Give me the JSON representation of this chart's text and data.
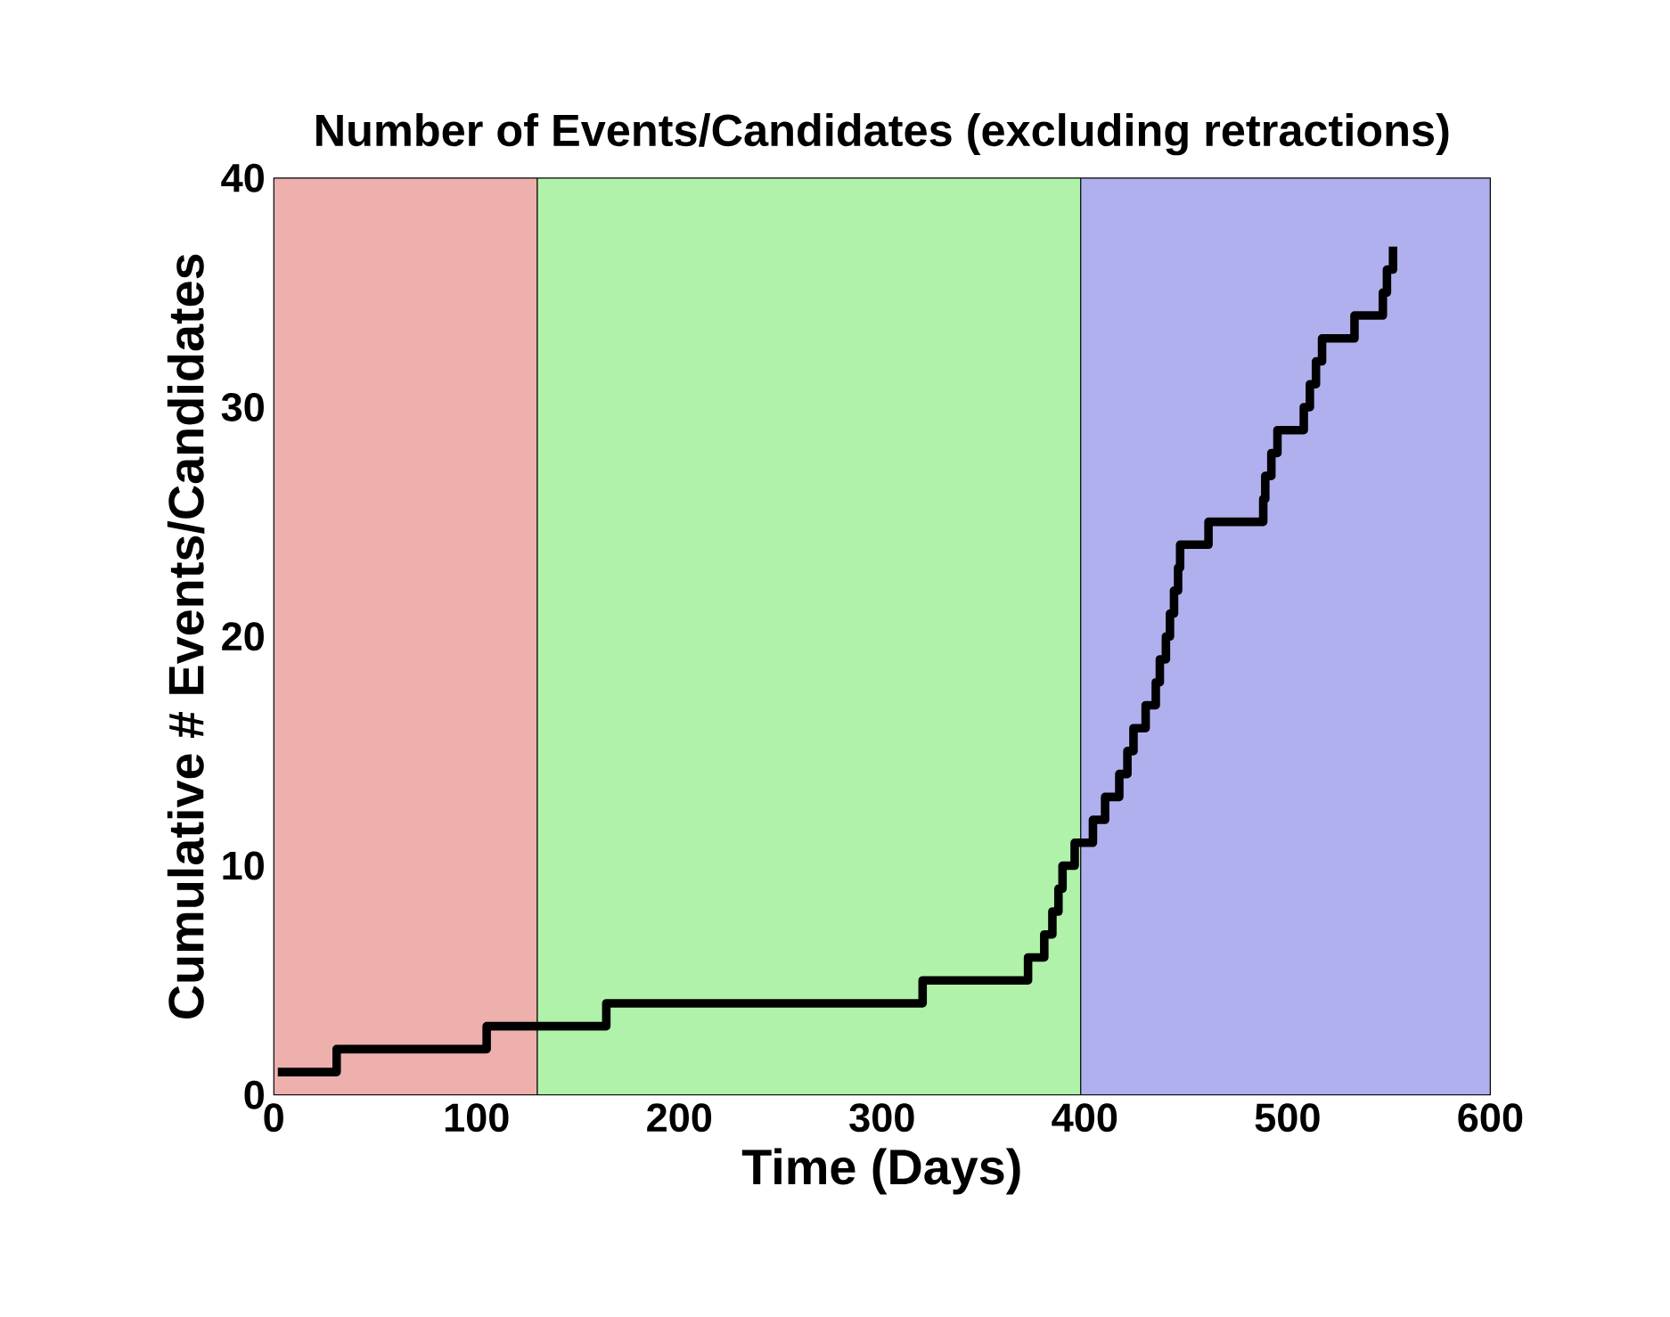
{
  "chart_data": {
    "type": "step",
    "title": "Number of Events/Candidates (excluding retractions)",
    "xlabel": "Time (Days)",
    "ylabel": "Cumulative # Events/Candidates",
    "x": [
      2,
      31,
      105,
      164,
      320,
      372,
      380,
      384,
      387,
      389,
      395,
      404,
      410,
      417,
      421,
      424,
      430,
      435,
      437,
      440,
      442,
      444,
      446,
      447,
      461,
      488,
      489,
      492,
      495,
      508,
      511,
      514,
      517,
      533,
      547,
      549,
      552
    ],
    "values": [
      1,
      2,
      3,
      4,
      5,
      6,
      7,
      8,
      9,
      10,
      11,
      12,
      13,
      14,
      15,
      16,
      17,
      18,
      19,
      20,
      21,
      22,
      23,
      24,
      25,
      26,
      27,
      28,
      29,
      30,
      31,
      32,
      33,
      34,
      35,
      36,
      37
    ],
    "color": "#000000",
    "xlim": [
      0,
      600
    ],
    "ylim": [
      0,
      40
    ],
    "xticks": [
      0,
      100,
      200,
      300,
      400,
      500,
      600
    ],
    "yticks": [
      0,
      10,
      20,
      30,
      40
    ],
    "bands": [
      {
        "axis": "x",
        "from": 0,
        "to": 130,
        "color": "#eeb0ad"
      },
      {
        "axis": "x",
        "from": 130,
        "to": 398,
        "color": "#b0f2aa"
      },
      {
        "axis": "x",
        "from": 398,
        "to": 600,
        "color": "#b0b0ee"
      }
    ]
  }
}
